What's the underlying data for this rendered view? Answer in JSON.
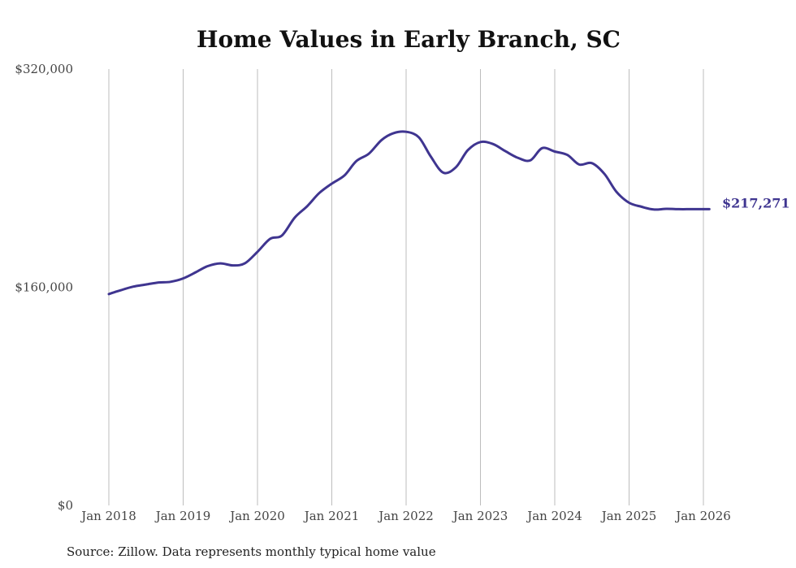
{
  "chart_data": {
    "type": "line",
    "title": "Home Values in Early Branch, SC",
    "source": "Source: Zillow. Data represents monthly typical home value",
    "ylim": [
      0,
      320000
    ],
    "y_ticks": [
      {
        "value": 0,
        "label": "$0"
      },
      {
        "value": 160000,
        "label": "$160,000"
      },
      {
        "value": 320000,
        "label": "$320,000"
      }
    ],
    "x_ticks": [
      {
        "value": 2018,
        "label": "Jan 2018"
      },
      {
        "value": 2019,
        "label": "Jan 2019"
      },
      {
        "value": 2020,
        "label": "Jan 2020"
      },
      {
        "value": 2021,
        "label": "Jan 2021"
      },
      {
        "value": 2022,
        "label": "Jan 2022"
      },
      {
        "value": 2023,
        "label": "Jan 2023"
      },
      {
        "value": 2024,
        "label": "Jan 2024"
      },
      {
        "value": 2025,
        "label": "Jan 2025"
      },
      {
        "value": 2026,
        "label": "Jan 2026"
      }
    ],
    "xlim": [
      2018,
      2026
    ],
    "grid": "vertical",
    "line_color": "#3f3590",
    "end_label": "$217,271",
    "series": [
      {
        "name": "Typical home value",
        "x": [
          2018.0,
          2018.08,
          2018.17,
          2018.33,
          2018.5,
          2018.67,
          2018.83,
          2019.0,
          2019.17,
          2019.33,
          2019.5,
          2019.67,
          2019.83,
          2020.0,
          2020.17,
          2020.33,
          2020.5,
          2020.67,
          2020.83,
          2021.0,
          2021.17,
          2021.33,
          2021.5,
          2021.67,
          2021.83,
          2022.0,
          2022.17,
          2022.33,
          2022.5,
          2022.67,
          2022.83,
          2023.0,
          2023.17,
          2023.33,
          2023.5,
          2023.67,
          2023.83,
          2024.0,
          2024.17,
          2024.33,
          2024.5,
          2024.67,
          2024.83,
          2025.0,
          2025.17,
          2025.33,
          2025.5,
          2025.67,
          2025.83,
          2026.0,
          2026.08
        ],
        "values": [
          155000,
          156500,
          158000,
          160500,
          162000,
          163500,
          164000,
          166500,
          171000,
          175500,
          177500,
          176000,
          177500,
          186000,
          195500,
          198000,
          211000,
          219500,
          229000,
          236000,
          242000,
          252500,
          258000,
          268000,
          273000,
          274000,
          270000,
          256000,
          244000,
          248000,
          260500,
          266500,
          265000,
          260000,
          255000,
          253000,
          262000,
          259500,
          257000,
          250000,
          251000,
          243000,
          230000,
          222000,
          219000,
          217000,
          217500,
          217271,
          217271,
          217271,
          217271
        ]
      }
    ]
  }
}
